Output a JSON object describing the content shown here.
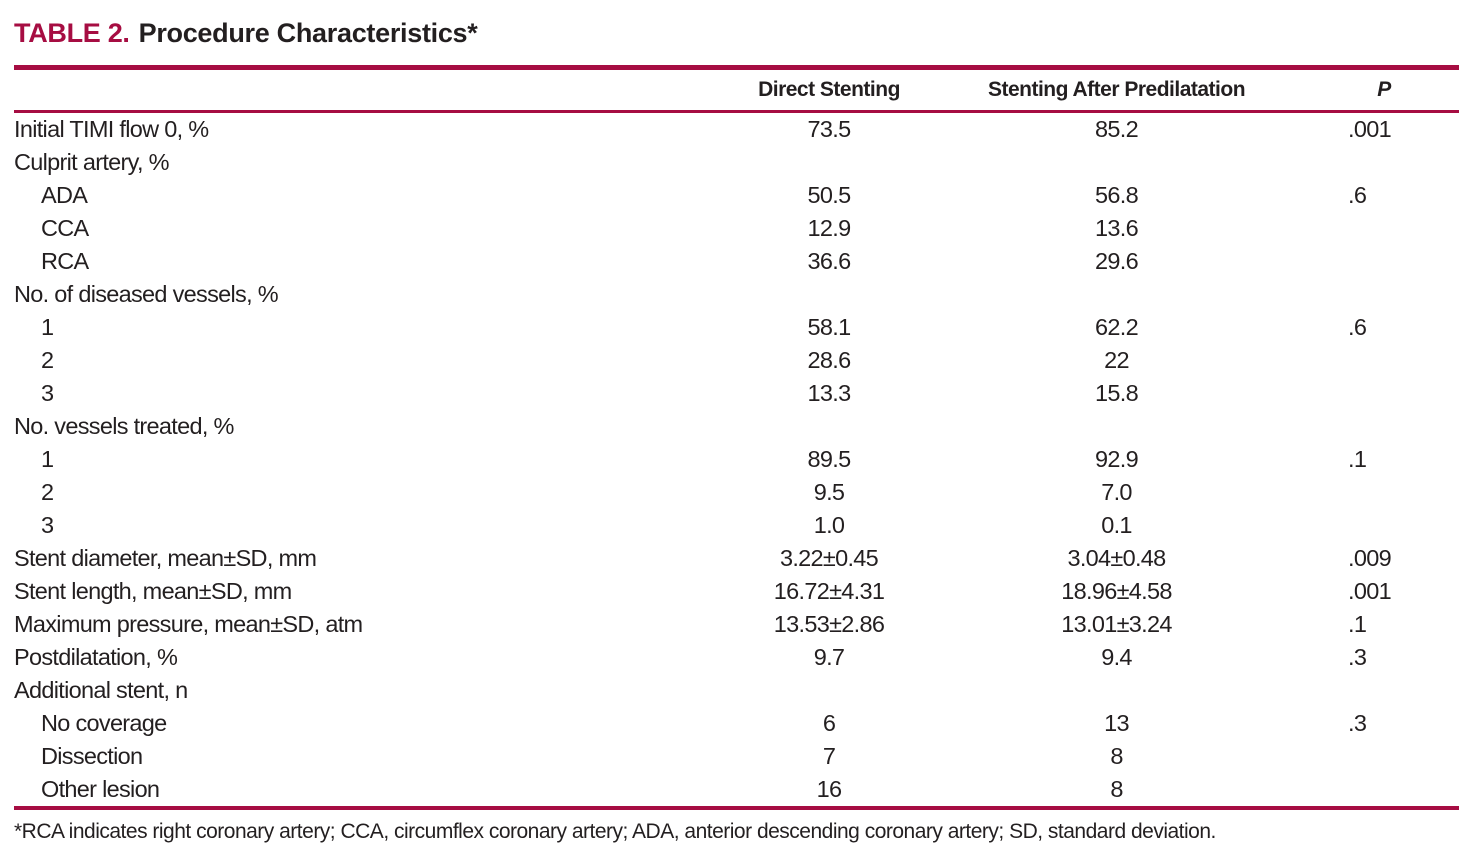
{
  "title": {
    "label": "TABLE 2.",
    "caption": "Procedure Characteristics*"
  },
  "columns": {
    "rowhead": "",
    "col1": "Direct Stenting",
    "col2": "Stenting After Predilatation",
    "p": "P"
  },
  "rows": [
    {
      "label": "Initial TIMI flow 0, %",
      "indent": 0,
      "c1": "73.5",
      "c2": "85.2",
      "p": ".001"
    },
    {
      "label": "Culprit artery, %",
      "indent": 0,
      "c1": "",
      "c2": "",
      "p": ""
    },
    {
      "label": "ADA",
      "indent": 1,
      "c1": "50.5",
      "c2": "56.8",
      "p": ".6"
    },
    {
      "label": "CCA",
      "indent": 1,
      "c1": "12.9",
      "c2": "13.6",
      "p": ""
    },
    {
      "label": "RCA",
      "indent": 1,
      "c1": "36.6",
      "c2": "29.6",
      "p": ""
    },
    {
      "label": "No. of diseased vessels, %",
      "indent": 0,
      "c1": "",
      "c2": "",
      "p": ""
    },
    {
      "label": "1",
      "indent": 1,
      "c1": "58.1",
      "c2": "62.2",
      "p": ".6"
    },
    {
      "label": "2",
      "indent": 1,
      "c1": "28.6",
      "c2": "22",
      "p": ""
    },
    {
      "label": "3",
      "indent": 1,
      "c1": "13.3",
      "c2": "15.8",
      "p": ""
    },
    {
      "label": "No. vessels treated, %",
      "indent": 0,
      "c1": "",
      "c2": "",
      "p": ""
    },
    {
      "label": "1",
      "indent": 1,
      "c1": "89.5",
      "c2": "92.9",
      "p": ".1"
    },
    {
      "label": "2",
      "indent": 1,
      "c1": "9.5",
      "c2": "7.0",
      "p": ""
    },
    {
      "label": "3",
      "indent": 1,
      "c1": "1.0",
      "c2": "0.1",
      "p": ""
    },
    {
      "label": "Stent diameter, mean±SD, mm",
      "indent": 0,
      "c1": "3.22±0.45",
      "c2": "3.04±0.48",
      "p": ".009"
    },
    {
      "label": "Stent length, mean±SD, mm",
      "indent": 0,
      "c1": "16.72±4.31",
      "c2": "18.96±4.58",
      "p": ".001"
    },
    {
      "label": "Maximum pressure, mean±SD, atm",
      "indent": 0,
      "c1": "13.53±2.86",
      "c2": "13.01±3.24",
      "p": ".1"
    },
    {
      "label": "Postdilatation, %",
      "indent": 0,
      "c1": "9.7",
      "c2": "9.4",
      "p": ".3"
    },
    {
      "label": "Additional stent, n",
      "indent": 0,
      "c1": "",
      "c2": "",
      "p": ""
    },
    {
      "label": "No coverage",
      "indent": 1,
      "c1": "6",
      "c2": "13",
      "p": ".3"
    },
    {
      "label": "Dissection",
      "indent": 1,
      "c1": "7",
      "c2": "8",
      "p": ""
    },
    {
      "label": "Other lesion",
      "indent": 1,
      "c1": "16",
      "c2": "8",
      "p": ""
    }
  ],
  "footnote": "*RCA indicates right coronary artery; CCA, circumflex coronary artery; ADA, anterior descending coronary artery; SD, standard deviation.",
  "colors": {
    "accent": "#a60d42",
    "text": "#231f20"
  }
}
